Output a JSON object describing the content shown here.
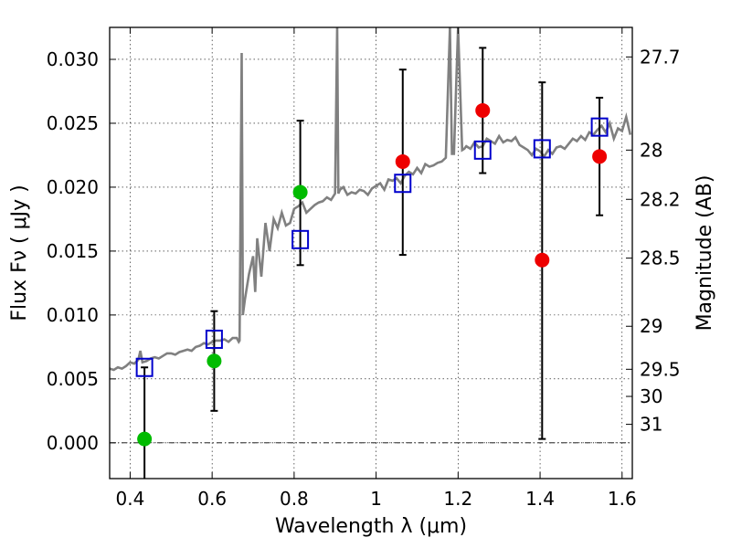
{
  "chart_data": {
    "type": "scatter",
    "title": "",
    "xlabel": "Wavelength  λ (μm)",
    "ylabel": "Flux  Fν  ( μJy )",
    "y2label": "Magnitude (AB)",
    "xlim": [
      0.35,
      1.625
    ],
    "ylim": [
      -0.0028,
      0.0325
    ],
    "grid": true,
    "x_ticks": [
      {
        "value": 0.4,
        "label": "0.4"
      },
      {
        "value": 0.6,
        "label": "0.6"
      },
      {
        "value": 0.8,
        "label": "0.8"
      },
      {
        "value": 1.0,
        "label": "1"
      },
      {
        "value": 1.2,
        "label": "1.2"
      },
      {
        "value": 1.4,
        "label": "1.4"
      },
      {
        "value": 1.6,
        "label": "1.6"
      }
    ],
    "y_ticks": [
      {
        "value": 0.0,
        "label": "0.000"
      },
      {
        "value": 0.005,
        "label": "0.005"
      },
      {
        "value": 0.01,
        "label": "0.010"
      },
      {
        "value": 0.015,
        "label": "0.015"
      },
      {
        "value": 0.02,
        "label": "0.020"
      },
      {
        "value": 0.025,
        "label": "0.025"
      },
      {
        "value": 0.03,
        "label": "0.030"
      }
    ],
    "y2_ticks": [
      {
        "mag": 27.7,
        "label": "27.7"
      },
      {
        "mag": 28,
        "label": "28"
      },
      {
        "mag": 28.2,
        "label": "28.2"
      },
      {
        "mag": 28.5,
        "label": "28.5"
      },
      {
        "mag": 29,
        "label": "29"
      },
      {
        "mag": 29.5,
        "label": "29.5"
      },
      {
        "mag": 30,
        "label": "30"
      },
      {
        "mag": 31,
        "label": "31"
      }
    ],
    "zero_line": 0.0,
    "spectrum": {
      "color": "#808080",
      "x": [
        0.35,
        0.36,
        0.37,
        0.38,
        0.39,
        0.4,
        0.41,
        0.42,
        0.425,
        0.43,
        0.44,
        0.45,
        0.46,
        0.47,
        0.48,
        0.49,
        0.5,
        0.51,
        0.52,
        0.53,
        0.54,
        0.55,
        0.56,
        0.57,
        0.58,
        0.59,
        0.6,
        0.61,
        0.62,
        0.63,
        0.64,
        0.65,
        0.66,
        0.665,
        0.667,
        0.672,
        0.675,
        0.68,
        0.69,
        0.7,
        0.705,
        0.71,
        0.72,
        0.73,
        0.74,
        0.75,
        0.76,
        0.77,
        0.78,
        0.79,
        0.8,
        0.81,
        0.82,
        0.83,
        0.84,
        0.85,
        0.86,
        0.87,
        0.88,
        0.89,
        0.9,
        0.905,
        0.908,
        0.912,
        0.92,
        0.93,
        0.94,
        0.95,
        0.96,
        0.97,
        0.98,
        0.99,
        1.0,
        1.01,
        1.02,
        1.03,
        1.04,
        1.05,
        1.06,
        1.07,
        1.08,
        1.09,
        1.1,
        1.11,
        1.12,
        1.13,
        1.14,
        1.15,
        1.16,
        1.17,
        1.18,
        1.185,
        1.19,
        1.2,
        1.21,
        1.215,
        1.22,
        1.23,
        1.24,
        1.25,
        1.26,
        1.27,
        1.28,
        1.29,
        1.3,
        1.31,
        1.32,
        1.33,
        1.34,
        1.35,
        1.36,
        1.37,
        1.38,
        1.39,
        1.4,
        1.41,
        1.42,
        1.43,
        1.44,
        1.45,
        1.46,
        1.47,
        1.48,
        1.49,
        1.5,
        1.51,
        1.52,
        1.53,
        1.54,
        1.55,
        1.56,
        1.57,
        1.58,
        1.59,
        1.6,
        1.61,
        1.62
      ],
      "y": [
        0.0058,
        0.0057,
        0.0059,
        0.0058,
        0.006,
        0.0063,
        0.0062,
        0.0065,
        0.0072,
        0.0063,
        0.0064,
        0.0066,
        0.0067,
        0.0066,
        0.0068,
        0.007,
        0.007,
        0.0069,
        0.0071,
        0.0072,
        0.0073,
        0.0072,
        0.0075,
        0.0076,
        0.0078,
        0.0077,
        0.0079,
        0.008,
        0.008,
        0.0081,
        0.0079,
        0.0082,
        0.0082,
        0.0079,
        0.008,
        0.0305,
        0.01,
        0.0112,
        0.0132,
        0.0146,
        0.0118,
        0.016,
        0.013,
        0.0172,
        0.015,
        0.0175,
        0.0168,
        0.018,
        0.017,
        0.0172,
        0.0183,
        0.0185,
        0.0188,
        0.018,
        0.0183,
        0.0186,
        0.0188,
        0.0189,
        0.0192,
        0.019,
        0.0195,
        0.033,
        0.0195,
        0.0198,
        0.02,
        0.0194,
        0.0196,
        0.0195,
        0.0198,
        0.0197,
        0.0194,
        0.0199,
        0.0201,
        0.0203,
        0.0198,
        0.0206,
        0.0205,
        0.0207,
        0.0203,
        0.0209,
        0.0212,
        0.021,
        0.0215,
        0.0211,
        0.0218,
        0.0216,
        0.0217,
        0.0219,
        0.022,
        0.0223,
        0.033,
        0.0226,
        0.0226,
        0.033,
        0.0229,
        0.023,
        0.0232,
        0.023,
        0.0235,
        0.0231,
        0.0232,
        0.0238,
        0.0236,
        0.0234,
        0.024,
        0.0235,
        0.0237,
        0.0236,
        0.0239,
        0.0233,
        0.0231,
        0.0229,
        0.0225,
        0.023,
        0.0228,
        0.0224,
        0.0229,
        0.0226,
        0.0231,
        0.0232,
        0.023,
        0.0234,
        0.0238,
        0.0236,
        0.024,
        0.0237,
        0.0243,
        0.0241,
        0.0245,
        0.0248,
        0.0243,
        0.025,
        0.0238,
        0.0246,
        0.0244,
        0.0255,
        0.0241
      ]
    },
    "series": [
      {
        "marker": "square",
        "color": "#0000cc",
        "x": [
          0.435,
          0.605,
          0.815,
          1.065,
          1.26,
          1.405,
          1.545
        ],
        "y": [
          0.0059,
          0.0081,
          0.0159,
          0.0203,
          0.0229,
          0.023,
          0.0247
        ]
      },
      {
        "marker": "circle",
        "color": "#00bb00",
        "x": [
          0.435,
          0.605,
          0.815
        ],
        "y": [
          0.0003,
          0.0064,
          0.0196
        ]
      },
      {
        "marker": "circle",
        "color": "#ee0000",
        "x": [
          1.065,
          1.26,
          1.405,
          1.545
        ],
        "y": [
          0.022,
          0.026,
          0.0143,
          0.0224
        ]
      }
    ],
    "errorbars": [
      {
        "x": 0.435,
        "low": -0.003,
        "high": 0.0059
      },
      {
        "x": 0.605,
        "low": 0.0025,
        "high": 0.0103
      },
      {
        "x": 0.815,
        "low": 0.0139,
        "high": 0.0252
      },
      {
        "x": 1.065,
        "low": 0.0147,
        "high": 0.0292
      },
      {
        "x": 1.26,
        "low": 0.0211,
        "high": 0.0309
      },
      {
        "x": 1.405,
        "low": 0.0003,
        "high": 0.0282
      },
      {
        "x": 1.545,
        "low": 0.0178,
        "high": 0.027
      }
    ]
  }
}
